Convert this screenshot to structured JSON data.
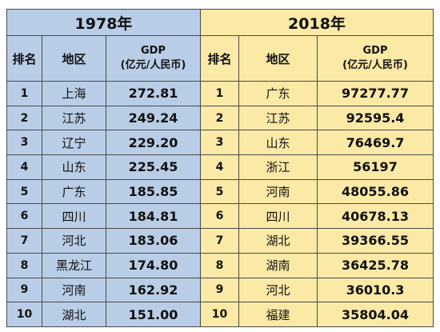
{
  "left": {
    "year": "1978年",
    "headers": {
      "rank": "排名",
      "region": "地区",
      "gdp_line1": "GDP",
      "gdp_line2": "(亿元/人民币)"
    },
    "rows": [
      {
        "rank": "1",
        "region": "上海",
        "gdp": "272.81"
      },
      {
        "rank": "2",
        "region": "江苏",
        "gdp": "249.24"
      },
      {
        "rank": "3",
        "region": "辽宁",
        "gdp": "229.20"
      },
      {
        "rank": "4",
        "region": "山东",
        "gdp": "225.45"
      },
      {
        "rank": "5",
        "region": "广东",
        "gdp": "185.85"
      },
      {
        "rank": "6",
        "region": "四川",
        "gdp": "184.81"
      },
      {
        "rank": "7",
        "region": "河北",
        "gdp": "183.06"
      },
      {
        "rank": "8",
        "region": "黑龙江",
        "gdp": "174.80"
      },
      {
        "rank": "9",
        "region": "河南",
        "gdp": "162.92"
      },
      {
        "rank": "10",
        "region": "湖北",
        "gdp": "151.00"
      }
    ]
  },
  "right": {
    "year": "2018年",
    "headers": {
      "rank": "排名",
      "region": "地区",
      "gdp_line1": "GDP",
      "gdp_line2": "(亿元/人民币)"
    },
    "rows": [
      {
        "rank": "1",
        "region": "广东",
        "gdp": "97277.77"
      },
      {
        "rank": "2",
        "region": "江苏",
        "gdp": "92595.4"
      },
      {
        "rank": "3",
        "region": "山东",
        "gdp": "76469.7"
      },
      {
        "rank": "4",
        "region": "浙江",
        "gdp": "56197"
      },
      {
        "rank": "5",
        "region": "河南",
        "gdp": "48055.86"
      },
      {
        "rank": "6",
        "region": "四川",
        "gdp": "40678.13"
      },
      {
        "rank": "7",
        "region": "湖北",
        "gdp": "39366.55"
      },
      {
        "rank": "8",
        "region": "湖南",
        "gdp": "36425.78"
      },
      {
        "rank": "9",
        "region": "河北",
        "gdp": "36010.3"
      },
      {
        "rank": "10",
        "region": "福建",
        "gdp": "35804.04"
      }
    ]
  },
  "colors": {
    "left_bg": "#b9cde6",
    "right_bg": "#fbe9a6",
    "border": "#4a4a4a"
  }
}
